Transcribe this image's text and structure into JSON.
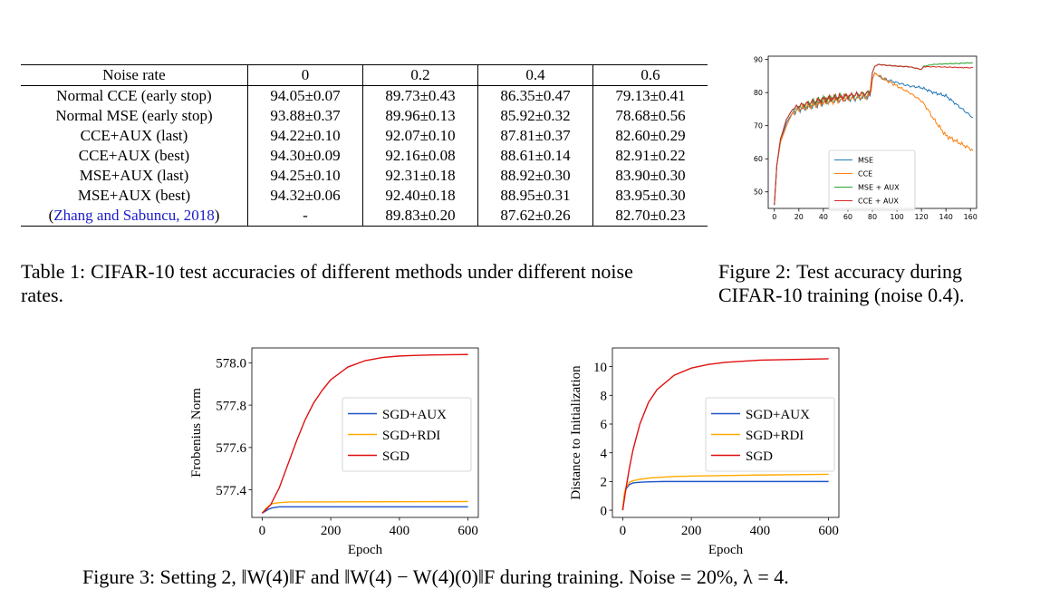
{
  "table1": {
    "headers": [
      "Noise rate",
      "0",
      "0.2",
      "0.4",
      "0.6"
    ],
    "rows": [
      {
        "method": "Normal CCE (early stop)",
        "values": [
          "94.05±0.07",
          "89.73±0.43",
          "86.35±0.47",
          "79.13±0.41"
        ]
      },
      {
        "method": "Normal MSE (early stop)",
        "values": [
          "93.88±0.37",
          "89.96±0.13",
          "85.92±0.32",
          "78.68±0.56"
        ]
      },
      {
        "method": "CCE+AUX (last)",
        "values": [
          "94.22±0.10",
          "92.07±0.10",
          "87.81±0.37",
          "82.60±0.29"
        ]
      },
      {
        "method": "CCE+AUX (best)",
        "values": [
          "94.30±0.09",
          "92.16±0.08",
          "88.61±0.14",
          "82.91±0.22"
        ]
      },
      {
        "method": "MSE+AUX (last)",
        "values": [
          "94.25±0.10",
          "92.31±0.18",
          "88.92±0.30",
          "83.90±0.30"
        ]
      },
      {
        "method": "MSE+AUX (best)",
        "values": [
          "94.32±0.06",
          "92.40±0.18",
          "88.95±0.31",
          "83.95±0.30"
        ]
      }
    ],
    "cite_row": {
      "open": "(",
      "cite_author": "Zhang and Sabuncu",
      "cite_sep": ", ",
      "cite_year": "2018",
      "close": ")",
      "values": [
        "-",
        "89.83±0.20",
        "87.62±0.26",
        "82.70±0.23"
      ]
    },
    "caption_label": "Table 1:",
    "caption_text": "CIFAR-10 test accuracies of different methods under different noise rates."
  },
  "figure2": {
    "caption_label": "Figure 2:",
    "caption_line1": "Test accuracy during",
    "caption_line2": "CIFAR-10 training (noise 0.4)."
  },
  "figure3": {
    "caption_text": "Figure 3: Setting 2, ‖W(4)‖F and ‖W(4) − W(4)(0)‖F during training. Noise = 20%, λ = 4."
  },
  "chart_data": [
    {
      "type": "line",
      "title": "",
      "xlabel": "",
      "ylabel": "",
      "xlim": [
        -5,
        165
      ],
      "ylim": [
        45,
        91
      ],
      "xticks": [
        0,
        20,
        40,
        60,
        80,
        100,
        120,
        140,
        160
      ],
      "yticks": [
        50,
        60,
        70,
        80,
        90
      ],
      "legend_position": "lower-right",
      "series": [
        {
          "name": "MSE",
          "color": "#1f77b4",
          "x": [
            0,
            2,
            5,
            10,
            15,
            20,
            30,
            40,
            50,
            60,
            70,
            78,
            80,
            82,
            85,
            90,
            100,
            110,
            120,
            130,
            140,
            150,
            160,
            162
          ],
          "y": [
            46,
            58,
            65,
            71,
            74,
            75,
            76,
            77,
            77.5,
            78,
            78.5,
            79,
            84,
            86,
            85,
            84,
            83,
            82,
            81.5,
            80,
            79,
            76,
            73,
            72.5
          ]
        },
        {
          "name": "CCE",
          "color": "#ff7f0e",
          "x": [
            0,
            2,
            5,
            10,
            15,
            20,
            30,
            40,
            50,
            60,
            70,
            78,
            80,
            82,
            85,
            90,
            100,
            110,
            120,
            125,
            130,
            140,
            150,
            160,
            162
          ],
          "y": [
            46,
            58,
            65,
            70,
            74,
            75,
            76,
            77,
            77.5,
            78,
            78.5,
            79,
            84,
            86,
            85,
            84,
            82,
            80,
            77.5,
            75,
            72,
            67,
            65,
            63,
            62.5
          ]
        },
        {
          "name": "MSE + AUX",
          "color": "#2ca02c",
          "x": [
            0,
            2,
            5,
            10,
            15,
            20,
            30,
            40,
            50,
            60,
            70,
            78,
            80,
            82,
            85,
            90,
            100,
            110,
            120,
            122,
            130,
            140,
            150,
            160,
            162
          ],
          "y": [
            46,
            58,
            66,
            72,
            75,
            76,
            77,
            78,
            78.5,
            79,
            79.5,
            80,
            86,
            88,
            88.5,
            88.3,
            88,
            87.8,
            87,
            88,
            88.5,
            88.7,
            88.8,
            89,
            89
          ]
        },
        {
          "name": "CCE + AUX",
          "color": "#d62728",
          "x": [
            0,
            2,
            5,
            10,
            15,
            20,
            30,
            40,
            50,
            60,
            70,
            78,
            80,
            82,
            85,
            90,
            100,
            110,
            120,
            122,
            130,
            140,
            150,
            160,
            162
          ],
          "y": [
            46,
            58,
            66,
            72,
            75,
            76,
            77,
            78,
            78.5,
            79,
            79.5,
            80,
            86,
            88,
            88.5,
            88.3,
            88,
            87.8,
            87,
            87.8,
            87.8,
            87.7,
            87.6,
            87.5,
            87.5
          ]
        }
      ]
    },
    {
      "type": "line",
      "title": "",
      "xlabel": "Epoch",
      "ylabel": "Frobenius Norm",
      "xlim": [
        -30,
        630
      ],
      "ylim": [
        577.27,
        578.07
      ],
      "xticks": [
        0,
        200,
        400,
        600
      ],
      "yticks": [
        577.4,
        577.6,
        577.8,
        578.0
      ],
      "legend_position": "right",
      "series": [
        {
          "name": "SGD+AUX",
          "color": "#1f55c8",
          "x": [
            0,
            10,
            20,
            30,
            50,
            80,
            600
          ],
          "y": [
            577.29,
            577.3,
            577.31,
            577.315,
            577.32,
            577.32,
            577.32
          ]
        },
        {
          "name": "SGD+RDI",
          "color": "#ffaa00",
          "x": [
            0,
            10,
            20,
            30,
            50,
            80,
            600
          ],
          "y": [
            577.29,
            577.31,
            577.325,
            577.335,
            577.34,
            577.343,
            577.345
          ]
        },
        {
          "name": "SGD",
          "color": "#e01010",
          "x": [
            0,
            25,
            50,
            75,
            100,
            125,
            150,
            175,
            200,
            250,
            300,
            350,
            400,
            450,
            500,
            550,
            600
          ],
          "y": [
            577.29,
            577.33,
            577.41,
            577.52,
            577.63,
            577.73,
            577.81,
            577.87,
            577.92,
            577.98,
            578.01,
            578.025,
            578.032,
            578.035,
            578.037,
            578.038,
            578.039
          ]
        }
      ]
    },
    {
      "type": "line",
      "title": "",
      "xlabel": "Epoch",
      "ylabel": "Distance to Initialization",
      "xlim": [
        -30,
        630
      ],
      "ylim": [
        -0.5,
        11.3
      ],
      "xticks": [
        0,
        200,
        400,
        600
      ],
      "yticks": [
        0,
        2,
        4,
        6,
        8,
        10
      ],
      "legend_position": "right",
      "series": [
        {
          "name": "SGD+AUX",
          "color": "#1f55c8",
          "x": [
            0,
            5,
            10,
            20,
            30,
            50,
            80,
            120,
            600
          ],
          "y": [
            0,
            1.1,
            1.5,
            1.8,
            1.9,
            1.95,
            1.98,
            2.0,
            2.0
          ]
        },
        {
          "name": "SGD+RDI",
          "color": "#ffaa00",
          "x": [
            0,
            5,
            10,
            20,
            30,
            50,
            80,
            150,
            250,
            400,
            600
          ],
          "y": [
            0,
            1.2,
            1.6,
            1.95,
            2.05,
            2.15,
            2.25,
            2.35,
            2.4,
            2.45,
            2.5
          ]
        },
        {
          "name": "SGD",
          "color": "#e01010",
          "x": [
            0,
            10,
            20,
            30,
            50,
            75,
            100,
            150,
            200,
            250,
            300,
            400,
            500,
            600
          ],
          "y": [
            0,
            1.6,
            3.0,
            4.2,
            6.0,
            7.5,
            8.4,
            9.4,
            9.9,
            10.15,
            10.3,
            10.45,
            10.5,
            10.55
          ]
        }
      ]
    }
  ]
}
